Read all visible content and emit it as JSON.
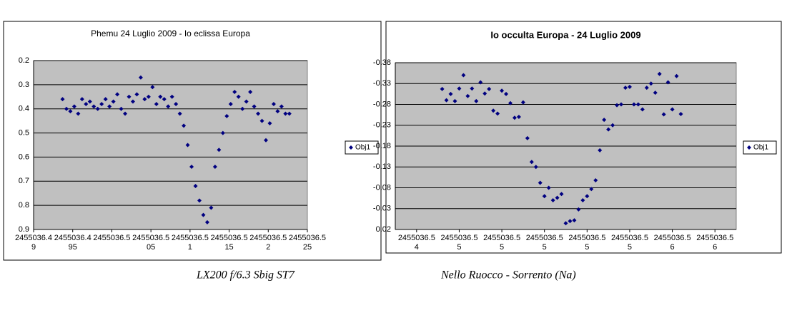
{
  "chart_data": [
    {
      "type": "scatter",
      "title": "Phemu 24 Luglio 2009 - Io eclissa Europa",
      "x": [
        2455036.4937,
        2455036.4942,
        2455036.4947,
        2455036.4952,
        2455036.4957,
        2455036.4962,
        2455036.4967,
        2455036.4972,
        2455036.4977,
        2455036.4982,
        2455036.4987,
        2455036.4992,
        2455036.4997,
        2455036.5002,
        2455036.5007,
        2455036.5012,
        2455036.5017,
        2455036.5022,
        2455036.5027,
        2455036.5032,
        2455036.5037,
        2455036.5042,
        2455036.5047,
        2455036.5052,
        2455036.5057,
        2455036.5062,
        2455036.5067,
        2455036.5072,
        2455036.5077,
        2455036.5082,
        2455036.5087,
        2455036.5092,
        2455036.5097,
        2455036.5102,
        2455036.5107,
        2455036.5112,
        2455036.5117,
        2455036.5122,
        2455036.5127,
        2455036.5132,
        2455036.5137,
        2455036.5142,
        2455036.5147,
        2455036.5152,
        2455036.5157,
        2455036.5162,
        2455036.5167,
        2455036.5172,
        2455036.5177,
        2455036.5182,
        2455036.5187,
        2455036.5192,
        2455036.5197,
        2455036.5202,
        2455036.5207,
        2455036.5212,
        2455036.5217,
        2455036.5222,
        2455036.5227
      ],
      "series": [
        {
          "name": "Obj1",
          "color": "#000080",
          "values": [
            0.36,
            0.4,
            0.41,
            0.39,
            0.42,
            0.36,
            0.38,
            0.37,
            0.39,
            0.4,
            0.38,
            0.36,
            0.39,
            0.37,
            0.34,
            0.4,
            0.42,
            0.35,
            0.37,
            0.34,
            0.27,
            0.36,
            0.35,
            0.31,
            0.38,
            0.35,
            0.36,
            0.39,
            0.35,
            0.38,
            0.42,
            0.47,
            0.55,
            0.64,
            0.72,
            0.78,
            0.84,
            0.87,
            0.81,
            0.64,
            0.57,
            0.5,
            0.43,
            0.38,
            0.33,
            0.35,
            0.4,
            0.37,
            0.33,
            0.39,
            0.42,
            0.45,
            0.53,
            0.46,
            0.38,
            0.41,
            0.39,
            0.42,
            0.42
          ]
        }
      ],
      "xlim": [
        2455036.49,
        2455036.525
      ],
      "xticks": [
        2455036.49,
        2455036.495,
        2455036.5,
        2455036.505,
        2455036.51,
        2455036.515,
        2455036.52,
        2455036.525
      ],
      "ylim": [
        0.2,
        0.9
      ],
      "y_inverted": true,
      "yticks": [
        0.2,
        0.3,
        0.4,
        0.5,
        0.6,
        0.7,
        0.8,
        0.9
      ],
      "grid": true,
      "legend": "right",
      "title_bold": false
    },
    {
      "type": "scatter",
      "title": "Io occulta Europa - 24 Luglio 2009",
      "x": [
        2455036.5452,
        2455036.5454,
        2455036.5456,
        2455036.5458,
        2455036.546,
        2455036.5462,
        2455036.5464,
        2455036.5466,
        2455036.5468,
        2455036.547,
        2455036.5472,
        2455036.5474,
        2455036.5476,
        2455036.5478,
        2455036.548,
        2455036.5482,
        2455036.5484,
        2455036.5486,
        2455036.5488,
        2455036.549,
        2455036.5492,
        2455036.5494,
        2455036.5496,
        2455036.5498,
        2455036.55,
        2455036.5502,
        2455036.5504,
        2455036.5506,
        2455036.5508,
        2455036.551,
        2455036.5512,
        2455036.5514,
        2455036.5516,
        2455036.5518,
        2455036.552,
        2455036.5522,
        2455036.5524,
        2455036.5526,
        2455036.5528,
        2455036.553,
        2455036.5532,
        2455036.5534,
        2455036.5536,
        2455036.5538,
        2455036.554,
        2455036.5542,
        2455036.5544,
        2455036.5546,
        2455036.5548,
        2455036.555,
        2455036.5552,
        2455036.5554,
        2455036.5556,
        2455036.5558,
        2455036.556,
        2455036.5562,
        2455036.5564
      ],
      "series": [
        {
          "name": "Obj1",
          "color": "#000080",
          "values": [
            -0.317,
            -0.29,
            -0.305,
            -0.288,
            -0.318,
            -0.35,
            -0.3,
            -0.318,
            -0.288,
            -0.333,
            -0.306,
            -0.317,
            -0.265,
            -0.258,
            -0.313,
            -0.305,
            -0.283,
            -0.248,
            -0.25,
            -0.285,
            -0.199,
            -0.142,
            -0.13,
            -0.092,
            -0.06,
            -0.08,
            -0.05,
            -0.056,
            -0.065,
            0.005,
            0.0,
            -0.002,
            -0.028,
            -0.05,
            -0.06,
            -0.077,
            -0.098,
            -0.17,
            -0.243,
            -0.22,
            -0.23,
            -0.278,
            -0.28,
            -0.32,
            -0.322,
            -0.28,
            -0.28,
            -0.268,
            -0.32,
            -0.33,
            -0.308,
            -0.353,
            -0.256,
            -0.333,
            -0.268,
            -0.348,
            -0.257
          ]
        }
      ],
      "xlim": [
        2455036.543,
        2455036.559
      ],
      "xticks": [
        {
          "value": 2455036.544,
          "label": "2455036.54"
        },
        {
          "value": 2455036.546,
          "label": "2455036.55"
        },
        {
          "value": 2455036.548,
          "label": "2455036.55"
        },
        {
          "value": 2455036.55,
          "label": "2455036.55"
        },
        {
          "value": 2455036.552,
          "label": "2455036.55"
        },
        {
          "value": 2455036.554,
          "label": "2455036.55"
        },
        {
          "value": 2455036.556,
          "label": "2455036.56"
        },
        {
          "value": 2455036.558,
          "label": "2455036.56"
        }
      ],
      "ylim": [
        -0.38,
        0.02
      ],
      "y_inverted": true,
      "yticks": [
        -0.38,
        -0.33,
        -0.28,
        -0.23,
        -0.18,
        -0.13,
        -0.08,
        -0.03,
        0.02
      ],
      "grid": true,
      "legend": "right",
      "title_bold": true
    }
  ],
  "captions": [
    "LX200 f/6.3  Sbig ST7",
    "Nello Ruocco - Sorrento (Na)"
  ]
}
